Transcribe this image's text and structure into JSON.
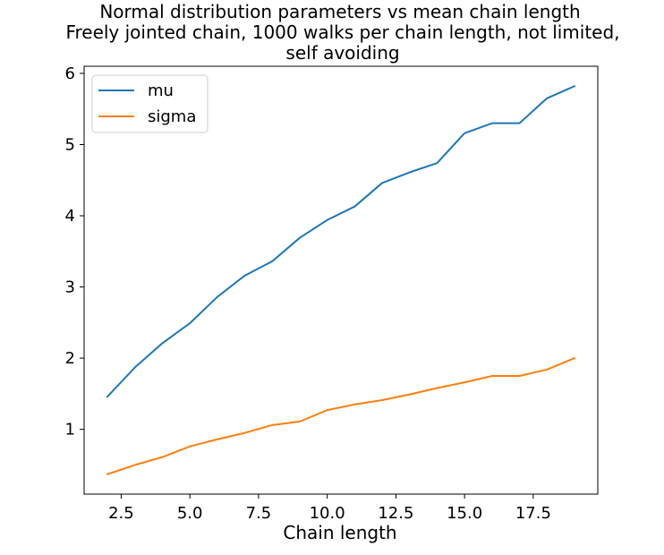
{
  "chart_data": {
    "type": "line",
    "title_lines": [
      "Normal distribution parameters vs mean chain length",
      "Freely jointed chain, 1000 walks per chain length, not limited,",
      "self avoiding"
    ],
    "xlabel": "Chain length",
    "ylabel": "",
    "x": [
      2,
      3,
      4,
      5,
      6,
      7,
      8,
      9,
      10,
      11,
      12,
      13,
      14,
      15,
      16,
      17,
      18,
      19
    ],
    "series": [
      {
        "name": "mu",
        "color": "#1f77b4",
        "values": [
          1.46,
          1.87,
          2.21,
          2.49,
          2.86,
          3.16,
          3.36,
          3.69,
          3.94,
          4.13,
          4.46,
          4.61,
          4.74,
          5.16,
          5.3,
          5.3,
          5.65,
          5.82
        ]
      },
      {
        "name": "sigma",
        "color": "#ff7f0e",
        "values": [
          0.37,
          0.5,
          0.61,
          0.76,
          0.86,
          0.95,
          1.06,
          1.11,
          1.27,
          1.35,
          1.41,
          1.49,
          1.58,
          1.66,
          1.75,
          1.75,
          1.84,
          2.0
        ]
      }
    ],
    "xlim": [
      1.15,
      19.85
    ],
    "ylim": [
      0.09,
      6.1
    ],
    "xticks": [
      2.5,
      5.0,
      7.5,
      10.0,
      12.5,
      15.0,
      17.5
    ],
    "xtick_labels": [
      "2.5",
      "5.0",
      "7.5",
      "10.0",
      "12.5",
      "15.0",
      "17.5"
    ],
    "yticks": [
      1,
      2,
      3,
      4,
      5,
      6
    ],
    "ytick_labels": [
      "1",
      "2",
      "3",
      "4",
      "5",
      "6"
    ],
    "grid": false,
    "legend_position": "top-left"
  }
}
